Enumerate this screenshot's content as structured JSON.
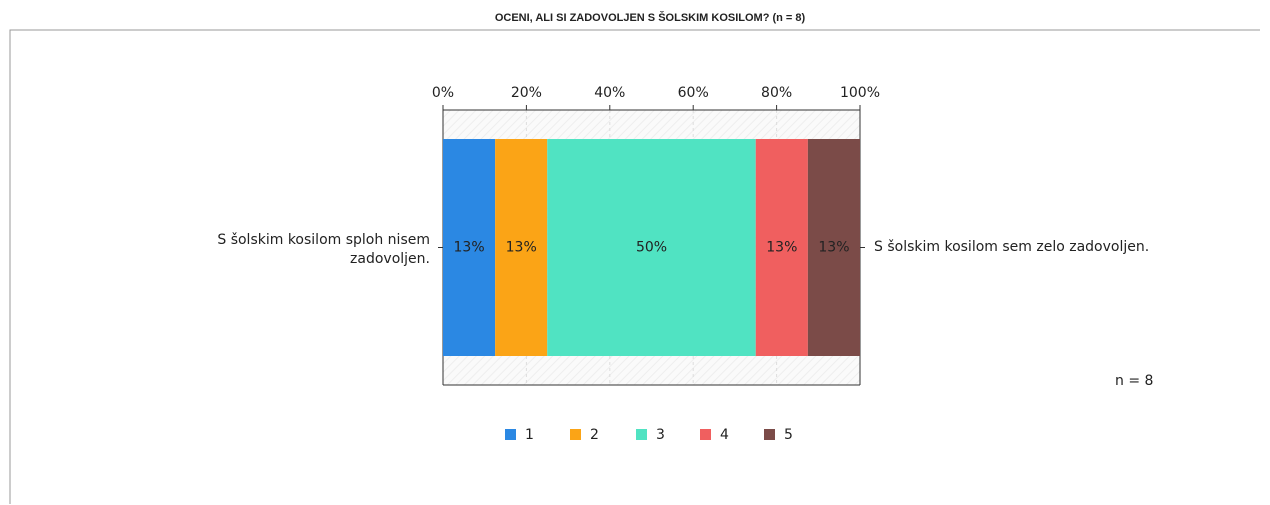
{
  "chart_data": {
    "type": "bar",
    "orientation": "horizontal",
    "stacked": true,
    "title": "OCENI, ALI SI ZADOVOLJEN S ŠOLSKIM KOSILOM? (n = 8)",
    "left_label": [
      "S šolskim kosilom sploh nisem",
      "zadovoljen."
    ],
    "right_label": "S šolskim kosilom sem zelo zadovoljen.",
    "annotation": "n = 8",
    "series": [
      {
        "name": "1",
        "color": "#2b88e3",
        "values": [
          12.5
        ],
        "value_labels": [
          "13%"
        ]
      },
      {
        "name": "2",
        "color": "#fba416",
        "values": [
          12.5
        ],
        "value_labels": [
          "13%"
        ]
      },
      {
        "name": "3",
        "color": "#50e3c2",
        "values": [
          50
        ],
        "value_labels": [
          "50%"
        ]
      },
      {
        "name": "4",
        "color": "#f05f5f",
        "values": [
          12.5
        ],
        "value_labels": [
          "13%"
        ]
      },
      {
        "name": "5",
        "color": "#7b4b48",
        "values": [
          12.5
        ],
        "value_labels": [
          "13%"
        ]
      }
    ],
    "xlim": [
      0,
      100
    ],
    "xticks": [
      {
        "value": 0,
        "label": "0%"
      },
      {
        "value": 20,
        "label": "20%"
      },
      {
        "value": 40,
        "label": "40%"
      },
      {
        "value": 60,
        "label": "60%"
      },
      {
        "value": 80,
        "label": "80%"
      },
      {
        "value": 100,
        "label": "100%"
      }
    ],
    "grid": true,
    "legend": "bottom"
  }
}
